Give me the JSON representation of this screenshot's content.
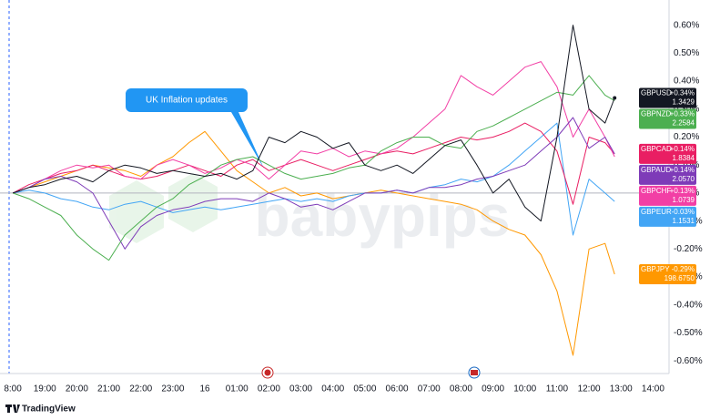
{
  "chart_data": {
    "type": "line",
    "annotation": "UK Inflation updates",
    "watermark": "babypips",
    "brand": "TradingView",
    "x": [
      0,
      0.5,
      1,
      1.5,
      2,
      2.5,
      3,
      3.5,
      4,
      4.5,
      5,
      5.5,
      6,
      6.5,
      7,
      7.5,
      8,
      8.5,
      9,
      9.5,
      10,
      10.5,
      11,
      11.5,
      12,
      12.5,
      13,
      13.5,
      14,
      14.5,
      15,
      15.5,
      16,
      16.5,
      17,
      17.5,
      18,
      18.5,
      18.8
    ],
    "xlim": [
      -0.4,
      20.5
    ],
    "xticks": [
      {
        "value": 0,
        "label": "8:00"
      },
      {
        "value": 1,
        "label": "19:00"
      },
      {
        "value": 2,
        "label": "20:00"
      },
      {
        "value": 3,
        "label": "21:00"
      },
      {
        "value": 4,
        "label": "22:00"
      },
      {
        "value": 5,
        "label": "23:00"
      },
      {
        "value": 6,
        "label": "16"
      },
      {
        "value": 7,
        "label": "01:00"
      },
      {
        "value": 8,
        "label": "02:00"
      },
      {
        "value": 9,
        "label": "03:00"
      },
      {
        "value": 10,
        "label": "04:00"
      },
      {
        "value": 11,
        "label": "05:00"
      },
      {
        "value": 12,
        "label": "06:00"
      },
      {
        "value": 13,
        "label": "07:00"
      },
      {
        "value": 14,
        "label": "08:00"
      },
      {
        "value": 15,
        "label": "09:00"
      },
      {
        "value": 16,
        "label": "10:00"
      },
      {
        "value": 17,
        "label": "11:00"
      },
      {
        "value": 18,
        "label": "12:00"
      },
      {
        "value": 19,
        "label": "13:00"
      },
      {
        "value": 20,
        "label": "14:00"
      }
    ],
    "ylim": [
      -0.645,
      0.69
    ],
    "yticks": [
      {
        "value": 0.6,
        "label": "0.60%"
      },
      {
        "value": 0.5,
        "label": "0.50%"
      },
      {
        "value": 0.4,
        "label": "0.40%"
      },
      {
        "value": 0.3,
        "label": "0.30%"
      },
      {
        "value": 0.2,
        "label": "0.20%"
      },
      {
        "value": 0.1,
        "label": "0.10%"
      },
      {
        "value": 0,
        "label": "0.00%"
      },
      {
        "value": -0.1,
        "label": "-0.10%"
      },
      {
        "value": -0.2,
        "label": "-0.20%"
      },
      {
        "value": -0.3,
        "label": "-0.30%"
      },
      {
        "value": -0.4,
        "label": "-0.40%"
      },
      {
        "value": -0.5,
        "label": "-0.50%"
      },
      {
        "value": -0.6,
        "label": "-0.60%"
      }
    ],
    "grid": false,
    "series": [
      {
        "name": "GBPJPY",
        "color": "#ff9800",
        "last_label": "-0.29%",
        "price": "198.6750",
        "values": [
          0,
          0.02,
          0.04,
          0.06,
          0.08,
          0.1,
          0.09,
          0.08,
          0.06,
          0.1,
          0.13,
          0.18,
          0.22,
          0.15,
          0.08,
          0.04,
          0,
          0.02,
          -0.01,
          0,
          -0.02,
          -0.01,
          0,
          0.01,
          0,
          -0.01,
          -0.02,
          -0.03,
          -0.04,
          -0.06,
          -0.1,
          -0.13,
          -0.15,
          -0.22,
          -0.35,
          -0.58,
          -0.2,
          -0.18,
          -0.29
        ]
      },
      {
        "name": "GBPEUR",
        "color": "#42a5f5",
        "last_label": "-0.03%",
        "price": "1.1531",
        "values": [
          0,
          0.01,
          0,
          -0.02,
          -0.03,
          -0.05,
          -0.06,
          -0.04,
          -0.03,
          -0.05,
          -0.07,
          -0.06,
          -0.05,
          -0.06,
          -0.05,
          -0.04,
          -0.03,
          -0.02,
          -0.03,
          -0.02,
          -0.03,
          -0.01,
          0,
          0,
          0.01,
          0,
          0.02,
          0.03,
          0.05,
          0.04,
          0.06,
          0.1,
          0.15,
          0.2,
          0.25,
          -0.15,
          0.05,
          0,
          -0.03
        ]
      },
      {
        "name": "GBPCAD",
        "color": "#e91e63",
        "last_label": "+0.14%",
        "price": "1.8384",
        "values": [
          0,
          0.03,
          0.05,
          0.07,
          0.08,
          0.1,
          0.08,
          0.06,
          0.05,
          0.06,
          0.08,
          0.1,
          0.08,
          0.06,
          0.1,
          0.12,
          0.08,
          0.1,
          0.12,
          0.1,
          0.08,
          0.1,
          0.12,
          0.14,
          0.15,
          0.14,
          0.16,
          0.18,
          0.2,
          0.19,
          0.2,
          0.22,
          0.25,
          0.22,
          0.15,
          -0.04,
          0.2,
          0.18,
          0.14
        ]
      },
      {
        "name": "GBPCHF",
        "color": "#f23fa5",
        "last_label": "+0.13%",
        "price": "1.0739",
        "values": [
          0,
          0.02,
          0.05,
          0.08,
          0.1,
          0.09,
          0.1,
          0.06,
          0.05,
          0.1,
          0.12,
          0.1,
          0.07,
          0.09,
          0.12,
          0.1,
          0.05,
          0.1,
          0.15,
          0.14,
          0.16,
          0.13,
          0.15,
          0.14,
          0.16,
          0.2,
          0.25,
          0.3,
          0.42,
          0.38,
          0.35,
          0.4,
          0.45,
          0.47,
          0.38,
          0.2,
          0.3,
          0.2,
          0.13
        ]
      },
      {
        "name": "GBPAUD",
        "color": "#7e3bb8",
        "last_label": "+0.14%",
        "price": "2.0570",
        "values": [
          0,
          0.02,
          0.05,
          0.06,
          0.04,
          0,
          -0.1,
          -0.2,
          -0.12,
          -0.08,
          -0.06,
          -0.05,
          -0.03,
          -0.02,
          -0.02,
          -0.03,
          0,
          -0.02,
          -0.05,
          -0.04,
          -0.06,
          -0.03,
          0,
          0,
          0.01,
          0,
          0.02,
          0.02,
          0.03,
          0.05,
          0.06,
          0.08,
          0.1,
          0.15,
          0.2,
          0.27,
          0.16,
          0.2,
          0.14
        ]
      },
      {
        "name": "GBPNZD",
        "color": "#4caf50",
        "last_label": "+0.33%",
        "price": "2.2584",
        "values": [
          0,
          -0.02,
          -0.05,
          -0.08,
          -0.15,
          -0.2,
          -0.24,
          -0.15,
          -0.1,
          -0.05,
          -0.02,
          0.03,
          0.06,
          0.1,
          0.12,
          0.13,
          0.1,
          0.07,
          0.05,
          0.06,
          0.07,
          0.09,
          0.1,
          0.15,
          0.18,
          0.2,
          0.2,
          0.17,
          0.16,
          0.22,
          0.24,
          0.27,
          0.3,
          0.33,
          0.36,
          0.35,
          0.42,
          0.35,
          0.33
        ]
      },
      {
        "name": "GBPUSD",
        "color": "#131722",
        "last_label": "+0.34%",
        "price": "1.3429",
        "values": [
          0,
          0.02,
          0.03,
          0.05,
          0.06,
          0.04,
          0.08,
          0.1,
          0.09,
          0.07,
          0.08,
          0.07,
          0.06,
          0.07,
          0.05,
          0.08,
          0.2,
          0.18,
          0.22,
          0.2,
          0.16,
          0.18,
          0.1,
          0.08,
          0.1,
          0.07,
          0.12,
          0.17,
          0.19,
          0.1,
          0,
          0.05,
          -0.05,
          -0.1,
          0.2,
          0.6,
          0.3,
          0.25,
          0.34
        ]
      }
    ]
  }
}
